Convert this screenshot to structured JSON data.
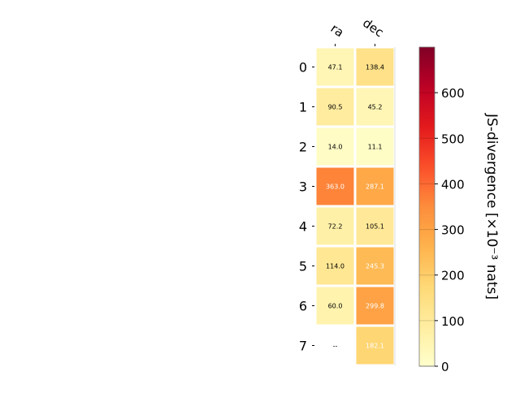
{
  "chart_data": {
    "type": "heatmap",
    "columns": [
      "ra",
      "dec"
    ],
    "rows": [
      "0",
      "1",
      "2",
      "3",
      "4",
      "5",
      "6",
      "7"
    ],
    "values": [
      [
        47.1,
        138.4
      ],
      [
        90.5,
        45.2
      ],
      [
        14.0,
        11.1
      ],
      [
        363.0,
        287.1
      ],
      [
        72.2,
        105.1
      ],
      [
        114.0,
        245.3
      ],
      [
        60.0,
        299.8
      ],
      [
        null,
        182.1
      ]
    ],
    "cell_labels": [
      [
        "47.1",
        "138.4"
      ],
      [
        "90.5",
        "45.2"
      ],
      [
        "14.0",
        "11.1"
      ],
      [
        "363.0",
        "287.1"
      ],
      [
        "72.2",
        "105.1"
      ],
      [
        "114.0",
        "245.3"
      ],
      [
        "60.0",
        "299.8"
      ],
      [
        "--",
        "182.1"
      ]
    ],
    "colorbar": {
      "label": "JS-divergence [×10⁻³ nats]",
      "range": [
        0,
        700
      ],
      "ticks": [
        0,
        100,
        200,
        300,
        400,
        500,
        600
      ],
      "colormap": "YlOrRd"
    },
    "colors": {
      "white_text_threshold": 180
    }
  }
}
